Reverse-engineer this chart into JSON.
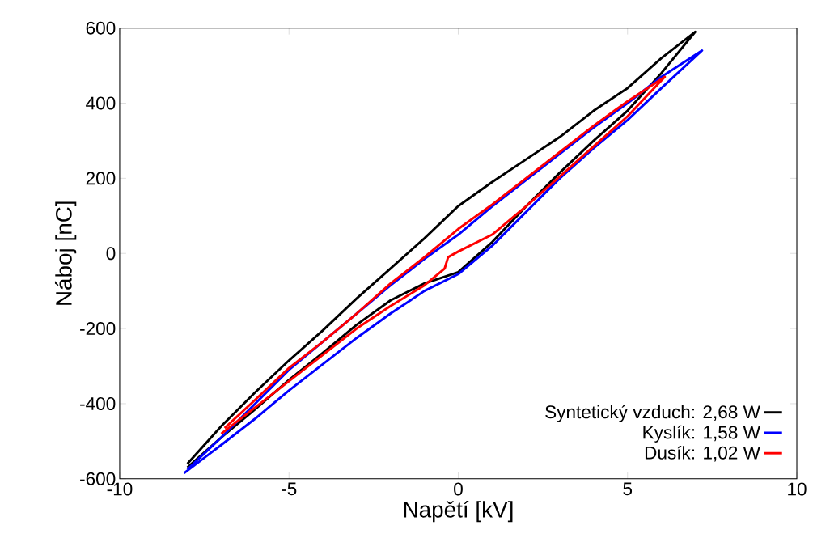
{
  "chart_data": {
    "type": "line",
    "xlabel": "Napětí [kV]",
    "ylabel": "Náboj [nC]",
    "xlim": [
      -10,
      10
    ],
    "ylim": [
      -600,
      600
    ],
    "xticks": [
      -10,
      -5,
      0,
      5,
      10
    ],
    "yticks": [
      -600,
      -400,
      -200,
      0,
      200,
      400,
      600
    ],
    "legend": "bottom right",
    "marker": "none",
    "line_style": "solid",
    "grid": false,
    "series": [
      {
        "name": "Syntetický vzduch: 2,68 W",
        "color": "#000000",
        "x": [
          -8.0,
          -7,
          -6,
          -5,
          -4,
          -3,
          -2,
          -1,
          0,
          1,
          2,
          3,
          4,
          5,
          6,
          7,
          7,
          6,
          5,
          4,
          3,
          2,
          1,
          0,
          -1,
          -2,
          -3,
          -4,
          -5,
          -6,
          -7,
          -8
        ],
        "values": [
          -570,
          -490,
          -415,
          -337,
          -265,
          -190,
          -125,
          -80,
          -50,
          30,
          125,
          215,
          300,
          380,
          480,
          590,
          590,
          520,
          440,
          380,
          310,
          250,
          190,
          126,
          40,
          -40,
          -120,
          -205,
          -285,
          -370,
          -460,
          -560
        ]
      },
      {
        "name": "Kyslík: 1,58 W",
        "color": "#0000ff",
        "x": [
          -8.1,
          -7,
          -6,
          -5,
          -4,
          -3,
          -2,
          -1,
          0,
          1,
          2,
          3,
          4,
          5,
          6,
          7.2,
          7.2,
          6,
          5,
          4,
          3,
          2,
          1,
          0,
          -1,
          -2,
          -3,
          -4,
          -5,
          -6,
          -7,
          -8.0
        ],
        "values": [
          -585,
          -510,
          -440,
          -365,
          -295,
          -225,
          -160,
          -100,
          -55,
          20,
          110,
          200,
          280,
          355,
          440,
          540,
          540,
          470,
          400,
          335,
          265,
          195,
          125,
          50,
          -15,
          -85,
          -160,
          -235,
          -310,
          -400,
          -490,
          -575
        ]
      },
      {
        "name": "Dusík: 1,02 W",
        "color": "#ff0000",
        "x": [
          -7,
          -6,
          -5,
          -4,
          -3,
          -2,
          -1,
          -0.4,
          -0.3,
          0,
          1,
          2,
          3,
          4,
          5,
          6.1,
          6.1,
          5,
          4,
          3,
          2,
          1,
          0,
          -1,
          -2,
          -3,
          -4,
          -5,
          -6,
          -6.9
        ],
        "values": [
          -480,
          -410,
          -340,
          -270,
          -200,
          -140,
          -85,
          -40,
          -10,
          5,
          50,
          125,
          205,
          285,
          365,
          470,
          470,
          405,
          340,
          270,
          200,
          130,
          65,
          -10,
          -80,
          -160,
          -235,
          -305,
          -390,
          -465
        ]
      }
    ]
  }
}
